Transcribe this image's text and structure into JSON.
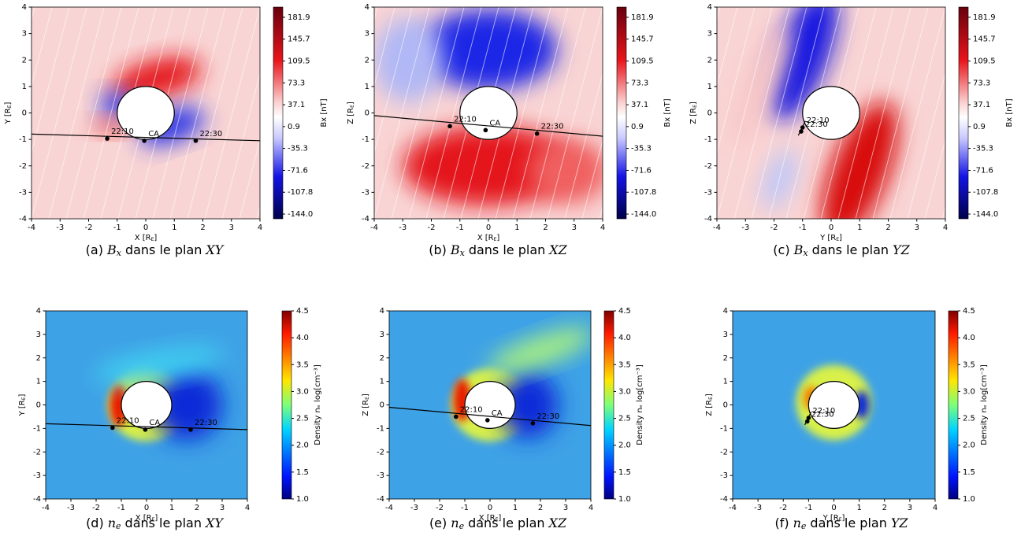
{
  "panels": [
    {
      "caption": {
        "tag": "(a)",
        "sym": "B",
        "sub": "x",
        "text": "dans le plan",
        "plane": "XY"
      },
      "xlabel": {
        "text": "X [R",
        "sub": "E",
        "end": "]"
      },
      "ylabel": {
        "text": "Y [R",
        "sub": "E",
        "end": "]"
      },
      "xlim": [
        -4,
        4
      ],
      "ylim": [
        -4,
        4
      ],
      "xticks": [
        -4,
        -3,
        -2,
        -1,
        0,
        1,
        2,
        3,
        4
      ],
      "yticks": [
        -4,
        -3,
        -2,
        -1,
        0,
        1,
        2,
        3,
        4
      ],
      "colorbar": {
        "label": "Bx [nT]",
        "clim": [
          -151.8,
          198.8
        ],
        "ticks": [
          181.9,
          145.7,
          109.5,
          73.3,
          37.1,
          0.9,
          -35.3,
          -71.6,
          -107.8,
          {
            "value": -144,
            "label": "-144.0"
          }
        ]
      },
      "trajectory": {
        "line": [
          [
            -4,
            -0.8
          ],
          [
            4,
            -1.05
          ]
        ],
        "points": [
          {
            "label": "22:10",
            "x": -1.35,
            "y": -0.97
          },
          {
            "label": "CA",
            "x": -0.05,
            "y": -1.05
          },
          {
            "label": "22:30",
            "x": 1.75,
            "y": -1.05
          }
        ]
      }
    },
    {
      "caption": {
        "tag": "(b)",
        "sym": "B",
        "sub": "x",
        "text": "dans le plan",
        "plane": "XZ"
      },
      "xlabel": {
        "text": "X [R",
        "sub": "E",
        "end": "]"
      },
      "ylabel": {
        "text": "Z [R",
        "sub": "E",
        "end": "]"
      },
      "xlim": [
        -4,
        4
      ],
      "ylim": [
        -4,
        4
      ],
      "xticks": [
        -4,
        -3,
        -2,
        -1,
        0,
        1,
        2,
        3,
        4
      ],
      "yticks": [
        -4,
        -3,
        -2,
        -1,
        0,
        1,
        2,
        3,
        4
      ],
      "colorbar": {
        "label": "Bx [nT]",
        "clim": [
          -151.8,
          198.8
        ],
        "ticks": [
          181.9,
          145.7,
          109.5,
          73.3,
          37.1,
          0.9,
          -35.3,
          -71.6,
          -107.8,
          {
            "value": -144,
            "label": "-144.0"
          }
        ]
      },
      "trajectory": {
        "line": [
          [
            -4,
            -0.1
          ],
          [
            4,
            -0.88
          ]
        ],
        "points": [
          {
            "label": "22:10",
            "x": -1.35,
            "y": -0.5
          },
          {
            "label": "CA",
            "x": -0.1,
            "y": -0.65
          },
          {
            "label": "22:30",
            "x": 1.7,
            "y": -0.78
          }
        ]
      }
    },
    {
      "caption": {
        "tag": "(c)",
        "sym": "B",
        "sub": "x",
        "text": "dans le plan",
        "plane": "YZ"
      },
      "xlabel": {
        "text": "Y [R",
        "sub": "E",
        "end": "]"
      },
      "ylabel": {
        "text": "Z [R",
        "sub": "E",
        "end": "]"
      },
      "xlim": [
        -4,
        4
      ],
      "ylim": [
        -4,
        4
      ],
      "xticks": [
        -4,
        -3,
        -2,
        -1,
        0,
        1,
        2,
        3,
        4
      ],
      "yticks": [
        -4,
        -3,
        -2,
        -1,
        0,
        1,
        2,
        3,
        4
      ],
      "colorbar": {
        "label": "Bx [nT]",
        "clim": [
          -151.8,
          198.8
        ],
        "ticks": [
          181.9,
          145.7,
          109.5,
          73.3,
          37.1,
          0.9,
          -35.3,
          -71.6,
          -107.8,
          {
            "value": -144,
            "label": "-144.0"
          }
        ]
      },
      "trajectory": {
        "line": [
          [
            -1.15,
            -0.85
          ],
          [
            -0.9,
            -0.3
          ]
        ],
        "points": [
          {
            "label": "22:10",
            "x": -1.0,
            "y": -0.55
          },
          {
            "label": "22:30",
            "x": -1.05,
            "y": -0.7
          }
        ]
      }
    },
    {
      "caption": {
        "tag": "(d)",
        "sym": "n",
        "sub": "e",
        "text": "dans le plan",
        "plane": "XY"
      },
      "xlabel": {
        "text": "X [R",
        "sub": "E",
        "end": "]"
      },
      "ylabel": {
        "text": "Y [R",
        "sub": "E",
        "end": "]"
      },
      "xlim": [
        -4,
        4
      ],
      "ylim": [
        -4,
        4
      ],
      "xticks": [
        -4,
        -3,
        -2,
        -1,
        0,
        1,
        2,
        3,
        4
      ],
      "yticks": [
        -4,
        -3,
        -2,
        -1,
        0,
        1,
        2,
        3,
        4
      ],
      "colorbar": {
        "label": "Density nₑ log[cm⁻³]",
        "clim": [
          1,
          4.5
        ],
        "ticks": [
          {
            "value": 1,
            "label": "1.0"
          },
          1.5,
          {
            "value": 2,
            "label": "2.0"
          },
          2.5,
          {
            "value": 3,
            "label": "3.0"
          },
          3.5,
          {
            "value": 4,
            "label": "4.0"
          },
          4.5
        ]
      },
      "trajectory": {
        "line": [
          [
            -4,
            -0.8
          ],
          [
            4,
            -1.05
          ]
        ],
        "points": [
          {
            "label": "22:10",
            "x": -1.35,
            "y": -0.97
          },
          {
            "label": "CA",
            "x": -0.05,
            "y": -1.05
          },
          {
            "label": "22:30",
            "x": 1.75,
            "y": -1.05
          }
        ]
      }
    },
    {
      "caption": {
        "tag": "(e)",
        "sym": "n",
        "sub": "e",
        "text": "dans le plan",
        "plane": "XZ"
      },
      "xlabel": {
        "text": "X [R",
        "sub": "E",
        "end": "]"
      },
      "ylabel": {
        "text": "Z [R",
        "sub": "E",
        "end": "]"
      },
      "xlim": [
        -4,
        4
      ],
      "ylim": [
        -4,
        4
      ],
      "xticks": [
        -4,
        -3,
        -2,
        -1,
        0,
        1,
        2,
        3,
        4
      ],
      "yticks": [
        -4,
        -3,
        -2,
        -1,
        0,
        1,
        2,
        3,
        4
      ],
      "colorbar": {
        "label": "Density nₑ log[cm⁻³]",
        "clim": [
          1,
          4.5
        ],
        "ticks": [
          {
            "value": 1,
            "label": "1.0"
          },
          1.5,
          {
            "value": 2,
            "label": "2.0"
          },
          2.5,
          {
            "value": 3,
            "label": "3.0"
          },
          3.5,
          {
            "value": 4,
            "label": "4.0"
          },
          4.5
        ]
      },
      "trajectory": {
        "line": [
          [
            -4,
            -0.1
          ],
          [
            4,
            -0.88
          ]
        ],
        "points": [
          {
            "label": "22:10",
            "x": -1.35,
            "y": -0.5
          },
          {
            "label": "CA",
            "x": -0.1,
            "y": -0.65
          },
          {
            "label": "22:30",
            "x": 1.7,
            "y": -0.78
          }
        ]
      }
    },
    {
      "caption": {
        "tag": "(f)",
        "sym": "n",
        "sub": "e",
        "text": "dans le plan",
        "plane": "YZ"
      },
      "xlabel": {
        "text": "Y [R",
        "sub": "E",
        "end": "]"
      },
      "ylabel": {
        "text": "Z [R",
        "sub": "E",
        "end": "]"
      },
      "xlim": [
        -4,
        4
      ],
      "ylim": [
        -4,
        4
      ],
      "xticks": [
        -4,
        -3,
        -2,
        -1,
        0,
        1,
        2,
        3,
        4
      ],
      "yticks": [
        -4,
        -3,
        -2,
        -1,
        0,
        1,
        2,
        3,
        4
      ],
      "colorbar": {
        "label": "Density nₑ log[cm⁻³]",
        "clim": [
          1,
          4.5
        ],
        "ticks": [
          {
            "value": 1,
            "label": "1.0"
          },
          1.5,
          {
            "value": 2,
            "label": "2.0"
          },
          2.5,
          {
            "value": 3,
            "label": "3.0"
          },
          3.5,
          {
            "value": 4,
            "label": "4.0"
          },
          4.5
        ]
      },
      "trajectory": {
        "line": [
          [
            -1.15,
            -0.85
          ],
          [
            -0.9,
            -0.3
          ]
        ],
        "points": [
          {
            "label": "22:10",
            "x": -1.0,
            "y": -0.55
          },
          {
            "label": "22:30",
            "x": -1.05,
            "y": -0.7
          }
        ]
      }
    }
  ]
}
